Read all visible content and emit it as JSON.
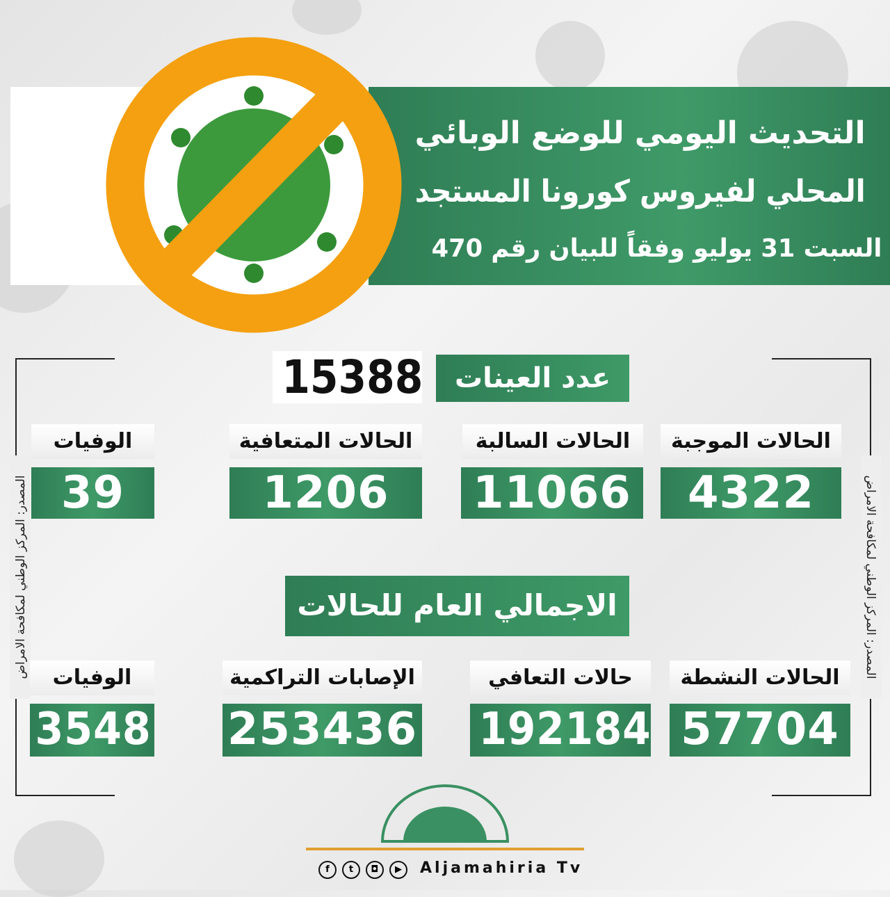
{
  "header": {
    "title_line1": "التحديث اليومي للوضع الوبائي",
    "title_line2": "المحلي لفيروس كورونا المستجد",
    "subtitle": "السبت 31 يوليو وفقاً للبيان رقم 470"
  },
  "samples": {
    "label": "عدد العينات",
    "value": "15388"
  },
  "daily": [
    {
      "label": "الحالات الموجبة",
      "value": "4322"
    },
    {
      "label": "الحالات السالبة",
      "value": "11066"
    },
    {
      "label": "الحالات المتعافية",
      "value": "1206"
    },
    {
      "label": "الوفيات",
      "value": "39"
    }
  ],
  "totals_title": "الاجمالي العام للحالات",
  "totals": [
    {
      "label": "الحالات النشطة",
      "value": "57704"
    },
    {
      "label": "حالات التعافي",
      "value": "192184"
    },
    {
      "label": "الإصابات التراكمية",
      "value": "253436"
    },
    {
      "label": "الوفيات",
      "value": "3548"
    }
  ],
  "source": "المصدر: المركز الوطني لمكافحة الامراض",
  "footer": {
    "brand": "Aljamahiria Tv",
    "social": [
      "facebook-icon",
      "twitter-icon",
      "instagram-icon",
      "youtube-icon"
    ]
  },
  "colors": {
    "green": "#3a9062",
    "orange": "#f4a011"
  }
}
